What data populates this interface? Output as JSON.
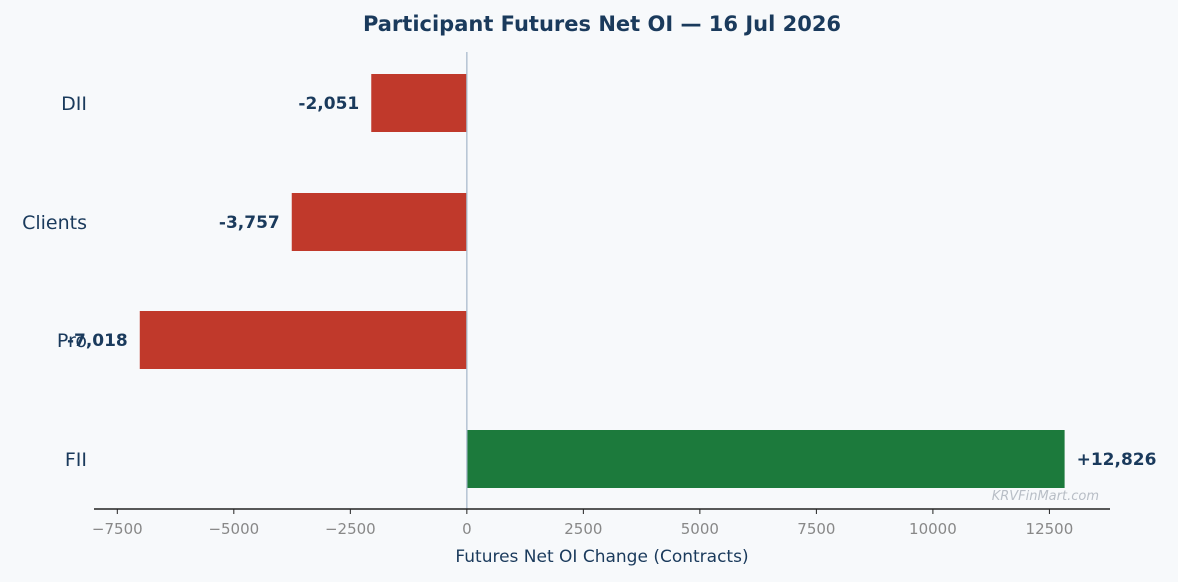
{
  "chart_data": {
    "type": "bar",
    "orientation": "horizontal",
    "title": "Participant Futures Net OI — 16 Jul 2026",
    "xlabel": "Futures Net OI Change (Contracts)",
    "ylabel": "",
    "categories": [
      "DII",
      "Clients",
      "Pro",
      "FII"
    ],
    "values": [
      -2051,
      -3757,
      -7018,
      12826
    ],
    "value_labels": [
      "-2,051",
      "-3,757",
      "-7,018",
      "+12,826"
    ],
    "xlim": [
      -8000,
      13800
    ],
    "xticks": [
      -7500,
      -5000,
      -2500,
      0,
      2500,
      5000,
      7500,
      10000,
      12500
    ],
    "xtick_labels": [
      "−7500",
      "−5000",
      "−2500",
      "0",
      "2500",
      "5000",
      "7500",
      "10000",
      "12500"
    ],
    "grid": false,
    "colors": {
      "positive": "#1c7a3c",
      "negative": "#c0392b",
      "text": "#1a3a5c",
      "tick": "#888888",
      "zero_line": "#aabbcc",
      "background": "#f7f9fb"
    },
    "watermark": "KRVFinMart.com"
  }
}
